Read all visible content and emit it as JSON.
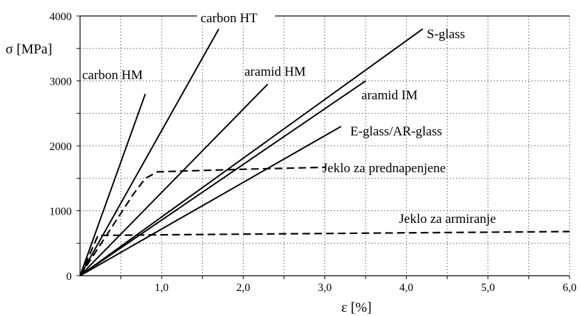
{
  "chart_data": {
    "type": "line",
    "title": "",
    "xlabel": "ε [%]",
    "ylabel": "σ [MPa]",
    "xlim": [
      0,
      6
    ],
    "ylim": [
      0,
      4000
    ],
    "x_ticks": [
      "1,0",
      "2,0",
      "3,0",
      "4,0",
      "5,0",
      "6,0"
    ],
    "y_ticks": [
      "0",
      "1000",
      "2000",
      "3000",
      "4000"
    ],
    "grid": true,
    "legend": "none",
    "series": [
      {
        "name": "carbon HM",
        "style": "solid",
        "x": [
          0,
          0.8
        ],
        "y": [
          0,
          2800
        ]
      },
      {
        "name": "carbon HT",
        "style": "solid",
        "x": [
          0,
          1.7
        ],
        "y": [
          0,
          3800
        ]
      },
      {
        "name": "aramid HM",
        "style": "solid",
        "x": [
          0,
          2.3
        ],
        "y": [
          0,
          2950
        ]
      },
      {
        "name": "S-glass",
        "style": "solid",
        "x": [
          0,
          4.2
        ],
        "y": [
          0,
          3800
        ]
      },
      {
        "name": "aramid IM",
        "style": "solid",
        "x": [
          0,
          3.5
        ],
        "y": [
          0,
          3000
        ]
      },
      {
        "name": "E-glass/AR-glass",
        "style": "solid",
        "x": [
          0,
          3.2
        ],
        "y": [
          0,
          2300
        ]
      },
      {
        "name": "Jeklo za prednapenjene",
        "style": "dashed",
        "x": [
          0,
          0.65,
          0.8,
          0.95,
          1.2,
          2.0,
          3.0
        ],
        "y": [
          0,
          1250,
          1500,
          1600,
          1610,
          1640,
          1670
        ]
      },
      {
        "name": "Jeklo za armiranje",
        "style": "dashed",
        "x": [
          0,
          0.22,
          1.0,
          3.0,
          6.0
        ],
        "y": [
          0,
          620,
          630,
          650,
          680
        ]
      }
    ]
  }
}
